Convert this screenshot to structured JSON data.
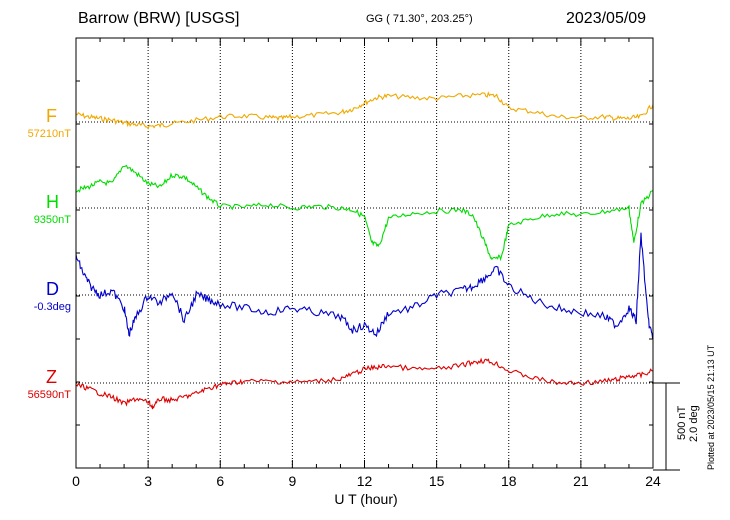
{
  "header": {
    "station": "Barrow (BRW)  [USGS]",
    "coordinates": "GG ( 71.30°, 203.25°)",
    "date": "2023/05/09"
  },
  "components": [
    {
      "letter": "F",
      "baseline": "57210nT",
      "color": "#f0a800"
    },
    {
      "letter": "H",
      "baseline": "9350nT",
      "color": "#00dd00"
    },
    {
      "letter": "D",
      "baseline": "-0.3deg",
      "color": "#0000cc"
    },
    {
      "letter": "Z",
      "baseline": "56590nT",
      "color": "#dd0000"
    }
  ],
  "scale": {
    "line1": "500 nT",
    "line2": "2.0 deg"
  },
  "plotted_note": "Plotted at 2023/05/15 21:13 UT",
  "chart_data": {
    "type": "line",
    "xlabel": "U T (hour)",
    "xlim": [
      0,
      24
    ],
    "x_ticks": [
      "0",
      "3",
      "6",
      "9",
      "12",
      "15",
      "18",
      "21",
      "24"
    ],
    "grid": true,
    "series": [
      {
        "name": "F",
        "color": "#f0a800",
        "x": [
          0,
          0.5,
          1,
          1.5,
          2,
          2.5,
          3,
          3.5,
          4,
          5,
          6,
          7,
          8,
          8.5,
          9,
          10,
          11,
          11.5,
          12,
          12.5,
          13,
          14,
          15,
          16,
          17,
          17.5,
          18,
          19,
          20,
          21,
          22,
          22.5,
          23,
          23.5,
          24
        ],
        "y": [
          45,
          30,
          20,
          10,
          -5,
          -15,
          -25,
          -20,
          -10,
          10,
          30,
          35,
          25,
          20,
          30,
          40,
          55,
          75,
          110,
          140,
          150,
          140,
          135,
          150,
          155,
          150,
          80,
          60,
          30,
          25,
          30,
          20,
          20,
          30,
          100
        ]
      },
      {
        "name": "H",
        "color": "#00dd00",
        "x": [
          0,
          0.5,
          1,
          1.5,
          2,
          2.5,
          3,
          3.5,
          4,
          4.5,
          5,
          5.5,
          6,
          7,
          8,
          9,
          10,
          11,
          11.5,
          12,
          12.3,
          12.6,
          13,
          14,
          15,
          16,
          16.5,
          17,
          17.3,
          17.7,
          18,
          19,
          20,
          21,
          22,
          23,
          23.2,
          23.5,
          24
        ],
        "y": [
          100,
          120,
          150,
          140,
          250,
          200,
          140,
          120,
          190,
          180,
          120,
          60,
          10,
          5,
          20,
          0,
          10,
          0,
          -10,
          -50,
          -200,
          -220,
          -60,
          -30,
          -20,
          -10,
          -40,
          -200,
          -300,
          -280,
          -100,
          -60,
          -30,
          -40,
          -20,
          0,
          -200,
          20,
          100
        ]
      },
      {
        "name": "D",
        "color": "#0000cc",
        "x": [
          0,
          0.3,
          0.6,
          1,
          1.5,
          2,
          2.2,
          2.5,
          3,
          3.5,
          4,
          4.5,
          5,
          5.5,
          6,
          7,
          8,
          9,
          10,
          11,
          11.5,
          12,
          12.5,
          13,
          14,
          15,
          16,
          16.5,
          17,
          17.5,
          18,
          19,
          20,
          21,
          22,
          22.5,
          23,
          23.3,
          23.5,
          23.8,
          24
        ],
        "y": [
          0.9,
          0.5,
          0.2,
          0.0,
          0.1,
          -0.3,
          -0.9,
          -0.5,
          0.0,
          -0.2,
          0.1,
          -0.6,
          0.0,
          -0.1,
          -0.2,
          -0.3,
          -0.4,
          -0.3,
          -0.4,
          -0.5,
          -0.8,
          -0.7,
          -0.9,
          -0.4,
          -0.3,
          0.0,
          0.1,
          0.2,
          0.4,
          0.6,
          0.2,
          -0.1,
          -0.3,
          -0.4,
          -0.5,
          -0.7,
          -0.3,
          -0.6,
          1.4,
          -0.6,
          -1.0
        ]
      },
      {
        "name": "Z",
        "color": "#dd0000",
        "x": [
          0,
          0.5,
          1,
          1.5,
          2,
          2.5,
          3,
          3.2,
          3.5,
          4,
          4.5,
          5,
          5.5,
          6,
          6.5,
          7,
          8,
          9,
          10,
          11,
          11.5,
          12,
          12.5,
          13,
          14,
          15,
          16,
          16.5,
          17,
          17.5,
          18,
          19,
          20,
          21,
          22,
          22.5,
          23,
          23.5,
          24
        ],
        "y": [
          -10,
          -30,
          -60,
          -80,
          -120,
          -90,
          -110,
          -140,
          -90,
          -100,
          -80,
          -60,
          -30,
          -10,
          0,
          10,
          10,
          5,
          10,
          25,
          50,
          80,
          90,
          100,
          80,
          80,
          100,
          120,
          130,
          110,
          70,
          30,
          0,
          0,
          10,
          20,
          40,
          45,
          70
        ]
      }
    ]
  }
}
